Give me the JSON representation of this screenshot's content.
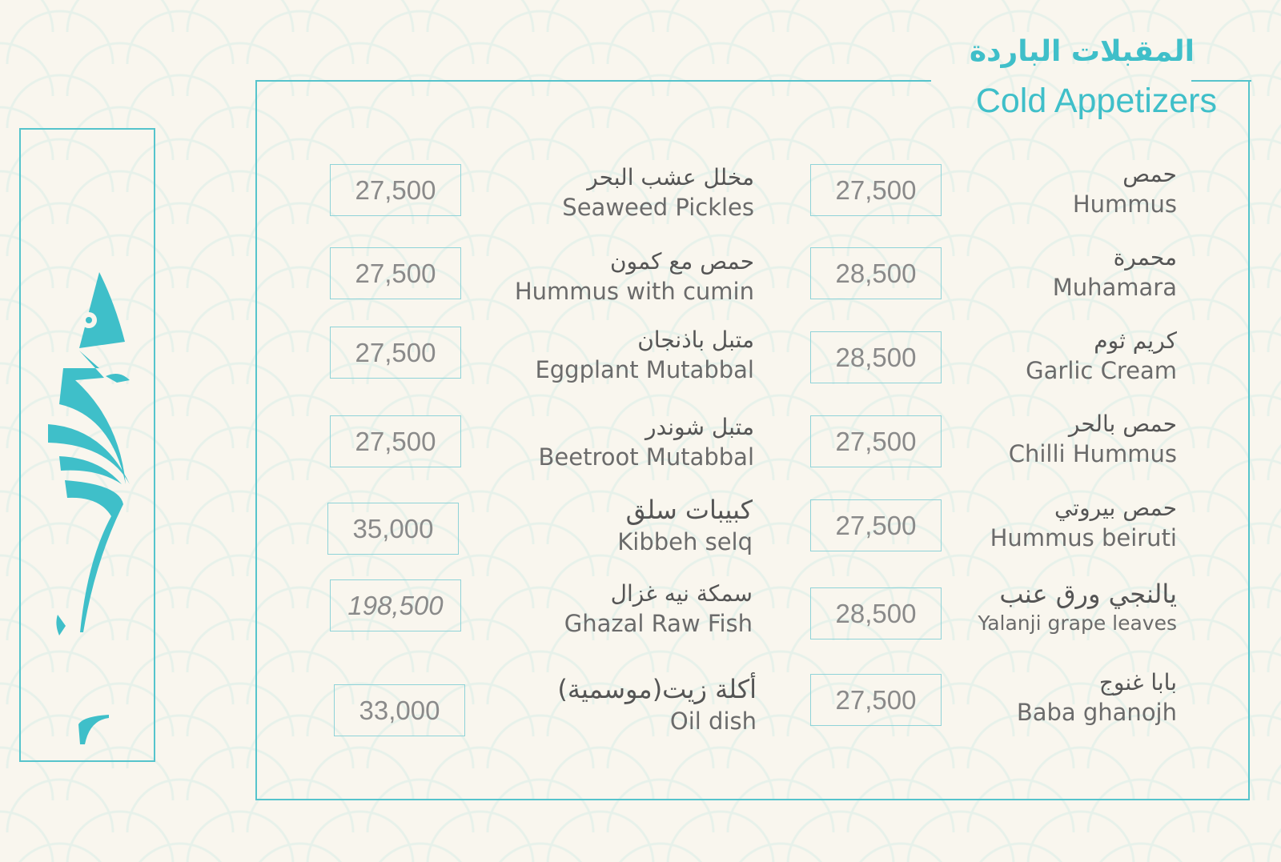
{
  "title": {
    "arabic": "المقبلات الباردة",
    "english": "Cold Appetizers"
  },
  "colors": {
    "accent": "#3fbfc9",
    "background": "#f9f6ee",
    "text": "#666666"
  },
  "logo": {
    "icon": "fish-skeleton-logo"
  },
  "right_column": [
    {
      "arabic": "حمص",
      "english": "Hummus",
      "price": "27,500"
    },
    {
      "arabic": "محمرة",
      "english": "Muhamara",
      "price": "28,500"
    },
    {
      "arabic": "كريم ثوم",
      "english": "Garlic Cream",
      "price": "28,500"
    },
    {
      "arabic": "حمص بالحر",
      "english": "Chilli Hummus",
      "price": "27,500"
    },
    {
      "arabic": "حمص بيروتي",
      "english": "Hummus beiruti",
      "price": "27,500"
    },
    {
      "arabic": "يالنجي ورق عنب",
      "english": "Yalanji grape leaves",
      "price": "28,500"
    },
    {
      "arabic": "بابا غنوج",
      "english": "Baba ghanojh",
      "price": "27,500"
    }
  ],
  "left_column": [
    {
      "arabic": "مخلل عشب البحر",
      "english": "Seaweed Pickles",
      "price": "27,500"
    },
    {
      "arabic": "حمص مع كمون",
      "english": "Hummus with cumin",
      "price": "27,500"
    },
    {
      "arabic": "متبل باذنجان",
      "english": "Eggplant Mutabbal",
      "price": "27,500"
    },
    {
      "arabic": "متبل شوندر",
      "english": "Beetroot Mutabbal",
      "price": "27,500"
    },
    {
      "arabic": "كبيبات سلق",
      "english": "Kibbeh selq",
      "price": "35,000"
    },
    {
      "arabic": "سمكة نيه غزال",
      "english": "Ghazal Raw Fish",
      "price": "198,500"
    },
    {
      "arabic": "أكلة زيت(موسمية)",
      "english": "Oil dish",
      "price": "33,000"
    }
  ]
}
